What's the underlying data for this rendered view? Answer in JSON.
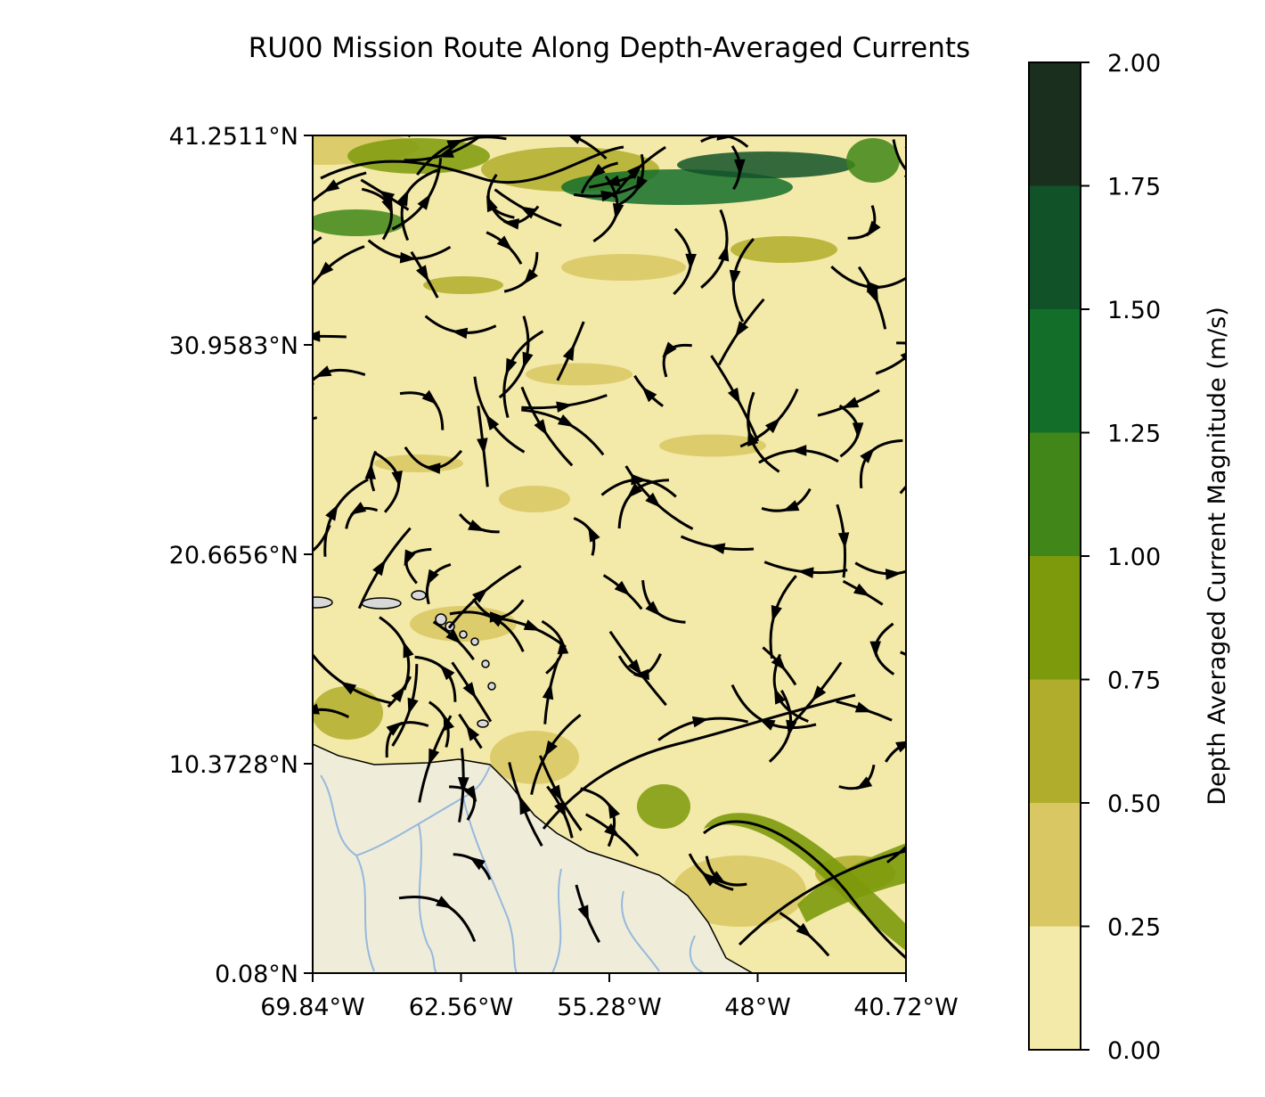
{
  "chart_data": {
    "type": "heatmap",
    "title": "RU00 Mission Route Along Depth-Averaged Currents",
    "xlabel": "",
    "ylabel": "",
    "x_ticks": [
      -69.84,
      -62.56,
      -55.28,
      -48.0,
      -40.72
    ],
    "x_tick_labels": [
      "69.84°W",
      "62.56°W",
      "55.28°W",
      "48°W",
      "40.72°W"
    ],
    "y_ticks": [
      0.08,
      10.3728,
      20.6656,
      30.9583,
      41.2511
    ],
    "y_tick_labels": [
      "0.08°N",
      "10.3728°N",
      "20.6656°N",
      "30.9583°N",
      "41.2511°N"
    ],
    "xlim": [
      -69.84,
      -40.72
    ],
    "ylim": [
      0.08,
      41.2511
    ],
    "colorbar": {
      "label": "Depth Averaged Current Magnitude (m/s)",
      "levels": [
        0.0,
        0.25,
        0.5,
        0.75,
        1.0,
        1.25,
        1.5,
        1.75,
        2.0
      ],
      "tick_labels": [
        "0.00",
        "0.25",
        "0.50",
        "0.75",
        "1.00",
        "1.25",
        "1.50",
        "1.75",
        "2.00"
      ],
      "colors": [
        "#f3e9a8",
        "#d8c762",
        "#b0ad2c",
        "#7d9a0c",
        "#408619",
        "#136e2a",
        "#125229",
        "#1b2f1e"
      ]
    },
    "land_color": "#efedda",
    "river_color": "#97b8dd",
    "ocean_base_color": "#f3e9a8",
    "streamline_color": "#000000"
  }
}
